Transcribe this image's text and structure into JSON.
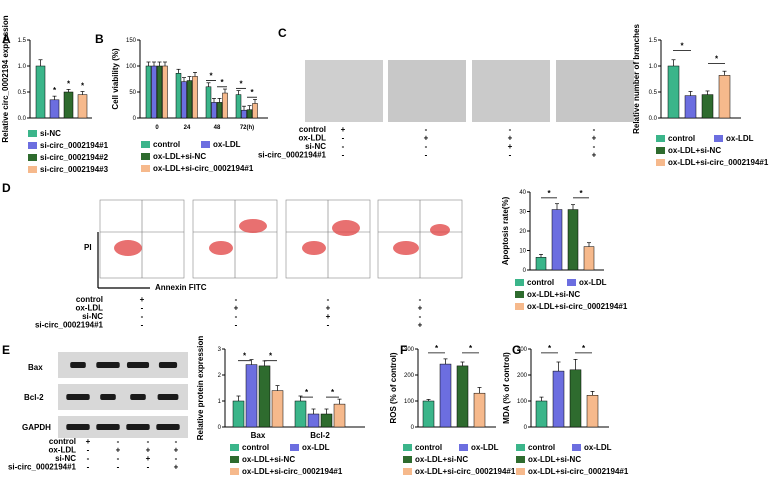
{
  "colors": {
    "green": "#3bb58a",
    "blue": "#6c6ee0",
    "dkgreen": "#2e6b2e",
    "peach": "#f6b98c",
    "red": "#d42020"
  },
  "panels": {
    "A": "A",
    "B": "B",
    "C": "C",
    "D": "D",
    "E": "E",
    "F": "F",
    "G": "G"
  },
  "chart_data": [
    {
      "id": "A",
      "type": "bar",
      "ylabel": "Relative circ_0002194 expression",
      "ylim": [
        0,
        1.5
      ],
      "yticks": [
        "0.0",
        "0.5",
        "1.0",
        "1.5"
      ],
      "categories": [
        "si-NC",
        "si-circ_0002194#1",
        "si-circ_0002194#2",
        "si-circ_0002194#3"
      ],
      "values": [
        1.0,
        0.35,
        0.5,
        0.45
      ],
      "errors": [
        0.12,
        0.07,
        0.05,
        0.06
      ],
      "stars": [
        "",
        "*",
        "*",
        "*"
      ]
    },
    {
      "id": "B",
      "type": "bar",
      "ylabel": "Cell viability (%)",
      "ylim": [
        0,
        150
      ],
      "yticks": [
        "0",
        "50",
        "100",
        "150"
      ],
      "categories": [
        "0",
        "24",
        "48",
        "72(h)"
      ],
      "series": [
        {
          "name": "control",
          "values": [
            100,
            86,
            60,
            45
          ]
        },
        {
          "name": "ox-LDL",
          "values": [
            100,
            70,
            30,
            15
          ]
        },
        {
          "name": "ox-LDL+si-NC",
          "values": [
            100,
            72,
            30,
            16
          ]
        },
        {
          "name": "ox-LDL+si-circ_0002194#1",
          "values": [
            100,
            80,
            48,
            28
          ]
        }
      ],
      "stars": [
        "",
        "",
        "* *",
        "* *"
      ]
    },
    {
      "id": "C",
      "type": "bar",
      "ylabel": "Relative number of branches",
      "ylim": [
        0,
        1.5
      ],
      "yticks": [
        "0.0",
        "0.5",
        "1.0",
        "1.5"
      ],
      "categories": [
        "control",
        "ox-LDL",
        "ox-LDL+si-NC",
        "ox-LDL+si-circ_0002194#1"
      ],
      "values": [
        1.0,
        0.43,
        0.45,
        0.82
      ],
      "errors": [
        0.12,
        0.08,
        0.07,
        0.08
      ]
    },
    {
      "id": "D",
      "type": "bar",
      "ylabel": "Apoptosis rate(%)",
      "ylim": [
        0,
        40
      ],
      "yticks": [
        "0",
        "10",
        "20",
        "30",
        "40"
      ],
      "categories": [
        "control",
        "ox-LDL",
        "ox-LDL+si-NC",
        "ox-LDL+si-circ_0002194#1"
      ],
      "values": [
        6.5,
        31,
        31,
        12
      ],
      "errors": [
        1.5,
        3,
        2.5,
        2
      ]
    },
    {
      "id": "E",
      "type": "bar",
      "ylabel": "Relative protein expression",
      "ylim": [
        0,
        3
      ],
      "yticks": [
        "0",
        "1",
        "2",
        "3"
      ],
      "categories": [
        "Bax",
        "Bcl-2"
      ],
      "series": [
        {
          "name": "control",
          "values": [
            1.0,
            1.0
          ]
        },
        {
          "name": "ox-LDL",
          "values": [
            2.4,
            0.5
          ]
        },
        {
          "name": "ox-LDL+si-NC",
          "values": [
            2.35,
            0.5
          ]
        },
        {
          "name": "ox-LDL+si-circ_0002194#1",
          "values": [
            1.4,
            0.88
          ]
        }
      ]
    },
    {
      "id": "F",
      "type": "bar",
      "ylabel": "ROS (% of control)",
      "ylim": [
        0,
        300
      ],
      "yticks": [
        "0",
        "100",
        "200",
        "300"
      ],
      "categories": [
        "control",
        "ox-LDL",
        "ox-LDL+si-NC",
        "ox-LDL+si-circ_0002194#1"
      ],
      "values": [
        100,
        242,
        235,
        130
      ],
      "errors": [
        6,
        20,
        15,
        22
      ]
    },
    {
      "id": "G",
      "type": "bar",
      "ylabel": "MDA (% of control)",
      "ylim": [
        0,
        300
      ],
      "yticks": [
        "0",
        "100",
        "200",
        "300"
      ],
      "categories": [
        "control",
        "ox-LDL",
        "ox-LDL+si-NC",
        "ox-LDL+si-circ_0002194#1"
      ],
      "values": [
        100,
        215,
        220,
        122
      ],
      "errors": [
        15,
        35,
        40,
        15
      ]
    }
  ],
  "condition_table": {
    "rows": [
      "control",
      "ox-LDL",
      "si-NC",
      "si-circ_0002194#1"
    ],
    "C_cols": [
      [
        "+",
        "-",
        "-",
        "-"
      ],
      [
        "-",
        "+",
        "-",
        "-"
      ],
      [
        "-",
        "+",
        "+",
        "-"
      ],
      [
        "-",
        "+",
        "-",
        "+"
      ]
    ],
    "D_cols": [
      [
        "+",
        "-",
        "-",
        "-"
      ],
      [
        "-",
        "+",
        "-",
        "-"
      ],
      [
        "-",
        "+",
        "+",
        "-"
      ],
      [
        "-",
        "+",
        "-",
        "+"
      ]
    ],
    "E_cols": [
      [
        "+",
        "-",
        "-",
        "-"
      ],
      [
        "-",
        "+",
        "-",
        "-"
      ],
      [
        "-",
        "+",
        "+",
        "-"
      ],
      [
        "-",
        "+",
        "-",
        "+"
      ]
    ]
  },
  "flow": {
    "ylabel": "PI",
    "xlabel": "Annexin FITC"
  },
  "blot": {
    "labels": [
      "Bax",
      "Bcl-2",
      "GAPDH"
    ]
  },
  "legend": {
    "star": "*"
  }
}
